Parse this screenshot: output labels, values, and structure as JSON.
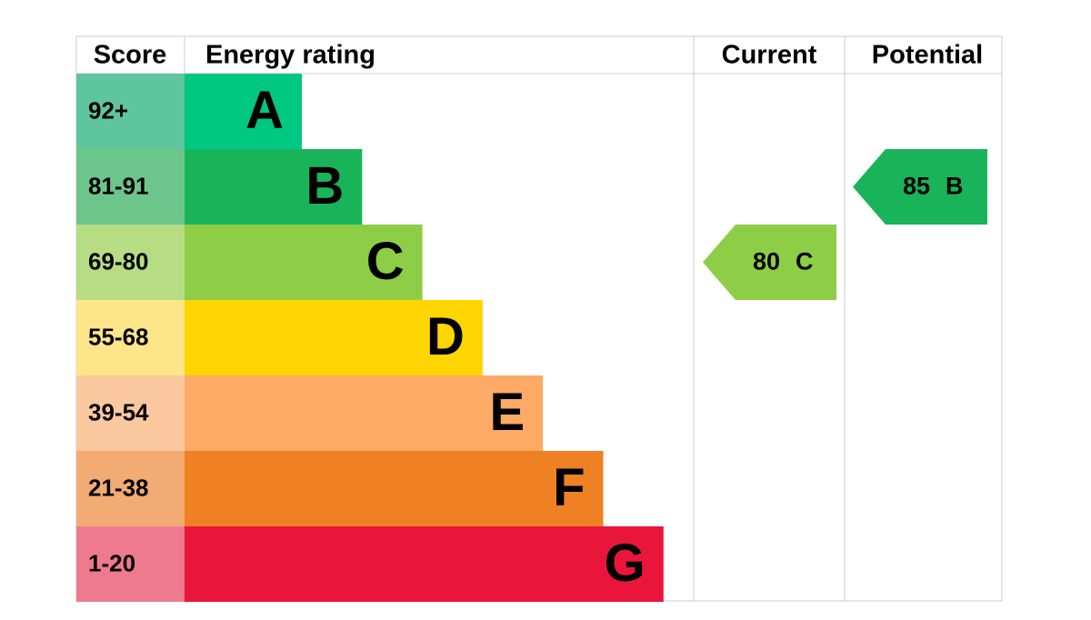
{
  "headers": {
    "score": "Score",
    "rating": "Energy rating",
    "current": "Current",
    "potential": "Potential"
  },
  "bands": [
    {
      "score": "92+",
      "letter": "A",
      "color": "#00c781",
      "score_color": "#5fc59f"
    },
    {
      "score": "81-91",
      "letter": "B",
      "color": "#19b459",
      "score_color": "#6cc58a"
    },
    {
      "score": "69-80",
      "letter": "C",
      "color": "#8dce46",
      "score_color": "#b6dd83"
    },
    {
      "score": "55-68",
      "letter": "D",
      "color": "#ffd500",
      "score_color": "#fde68a"
    },
    {
      "score": "39-54",
      "letter": "E",
      "color": "#fcaa65",
      "score_color": "#fcc8a0"
    },
    {
      "score": "21-38",
      "letter": "F",
      "color": "#ef8023",
      "score_color": "#f3ab74"
    },
    {
      "score": "1-20",
      "letter": "G",
      "color": "#e9153b",
      "score_color": "#ee7a8d"
    }
  ],
  "current": {
    "score": 80,
    "rating": "C"
  },
  "potential": {
    "score": 85,
    "rating": "B"
  }
}
